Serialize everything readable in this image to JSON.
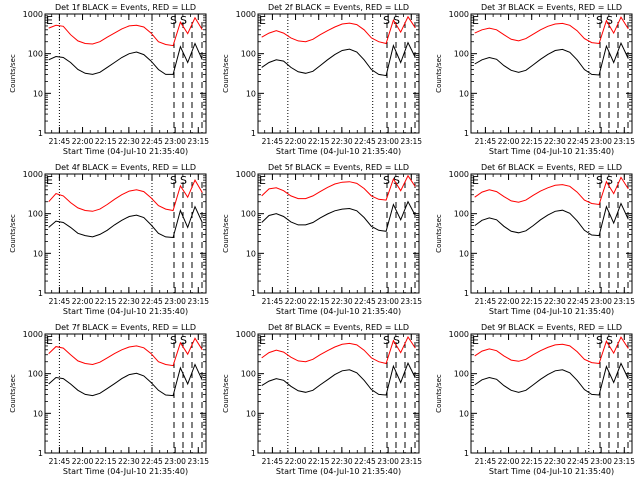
{
  "chart_data": [
    {
      "type": "line",
      "title": "Det 1f BLACK = Events, RED = LLD",
      "xlabel": "Start Time (04-Jul-10 21:35:40)",
      "ylabel": "Counts/sec",
      "yscale": "log",
      "ylim": [
        1,
        1000
      ],
      "yticks": [
        "1",
        "10",
        "100",
        "1000"
      ],
      "xticks": [
        "21:45",
        "22:00",
        "22:15",
        "22:30",
        "22:45",
        "23:00",
        "23:15"
      ],
      "marker_labels": [
        "E",
        "S",
        "S"
      ],
      "dotted_times": [
        "21:45",
        "22:45"
      ],
      "series": [
        {
          "color": "#ff0000",
          "start": "21:35:40",
          "values": [
            440,
            520,
            490,
            300,
            210,
            180,
            175,
            200,
            260,
            330,
            420,
            500,
            520,
            470,
            330,
            200,
            170,
            160,
            620,
            320,
            800,
            400
          ]
        },
        {
          "color": "#000000",
          "start": "21:35:40",
          "values": [
            70,
            85,
            80,
            60,
            40,
            32,
            30,
            34,
            45,
            60,
            80,
            100,
            110,
            95,
            65,
            40,
            30,
            30,
            150,
            60,
            180,
            70
          ]
        }
      ]
    },
    {
      "type": "line",
      "title": "Det 2f BLACK = Events, RED = LLD",
      "xlabel": "Start Time (04-Jul-10 21:35:40)",
      "ylabel": "Counts/sec",
      "yscale": "log",
      "ylim": [
        1,
        1000
      ],
      "yticks": [
        "1",
        "10",
        "100",
        "1000"
      ],
      "xticks": [
        "21:45",
        "22:00",
        "22:15",
        "22:30",
        "22:45",
        "23:00",
        "23:15"
      ],
      "marker_labels": [
        "E",
        "S",
        "S"
      ],
      "dotted_times": [
        "21:55",
        "22:50"
      ],
      "series": [
        {
          "color": "#ff0000",
          "start": "21:35:40",
          "values": [
            260,
            330,
            380,
            330,
            250,
            210,
            200,
            230,
            300,
            380,
            470,
            560,
            590,
            540,
            400,
            250,
            200,
            180,
            700,
            350,
            850,
            450
          ]
        },
        {
          "color": "#000000",
          "start": "21:35:40",
          "values": [
            45,
            60,
            70,
            65,
            45,
            35,
            32,
            36,
            50,
            70,
            95,
            120,
            130,
            110,
            70,
            40,
            30,
            28,
            160,
            60,
            190,
            80
          ]
        }
      ]
    },
    {
      "type": "line",
      "title": "Det 3f BLACK = Events, RED = LLD",
      "xlabel": "Start Time (04-Jul-10 21:35:40)",
      "ylabel": "Counts/sec",
      "yscale": "log",
      "ylim": [
        1,
        1000
      ],
      "yticks": [
        "1",
        "10",
        "100",
        "1000"
      ],
      "xticks": [
        "21:45",
        "22:00",
        "22:15",
        "22:30",
        "22:45",
        "23:00",
        "23:15"
      ],
      "marker_labels": [
        "E",
        "S",
        "S"
      ],
      "dotted_times": [
        "22:52"
      ],
      "series": [
        {
          "color": "#ff0000",
          "start": "21:35:40",
          "values": [
            330,
            400,
            440,
            400,
            300,
            230,
            210,
            240,
            310,
            400,
            490,
            560,
            580,
            520,
            380,
            240,
            190,
            180,
            680,
            330,
            830,
            420
          ]
        },
        {
          "color": "#000000",
          "start": "21:35:40",
          "values": [
            55,
            70,
            80,
            72,
            50,
            38,
            34,
            38,
            52,
            72,
            96,
            120,
            128,
            108,
            70,
            40,
            30,
            29,
            155,
            60,
            185,
            75
          ]
        }
      ]
    },
    {
      "type": "line",
      "title": "Det 4f BLACK = Events, RED = LLD",
      "xlabel": "Start Time (04-Jul-10 21:35:40)",
      "ylabel": "Counts/sec",
      "yscale": "log",
      "ylim": [
        1,
        1000
      ],
      "yticks": [
        "1",
        "10",
        "100",
        "1000"
      ],
      "xticks": [
        "21:45",
        "22:00",
        "22:15",
        "22:30",
        "22:45",
        "23:00",
        "23:15"
      ],
      "marker_labels": [
        "E",
        "S",
        "S"
      ],
      "dotted_times": [
        "21:45",
        "22:45"
      ],
      "series": [
        {
          "color": "#ff0000",
          "start": "21:35:40",
          "values": [
            200,
            320,
            280,
            190,
            140,
            120,
            115,
            130,
            170,
            230,
            300,
            370,
            400,
            360,
            250,
            160,
            130,
            120,
            500,
            260,
            700,
            340
          ]
        },
        {
          "color": "#000000",
          "start": "21:35:40",
          "values": [
            45,
            65,
            60,
            45,
            32,
            28,
            26,
            30,
            38,
            52,
            68,
            85,
            92,
            80,
            52,
            32,
            26,
            25,
            120,
            45,
            150,
            60
          ]
        }
      ]
    },
    {
      "type": "line",
      "title": "Det 5f BLACK = Events, RED = LLD",
      "xlabel": "Start Time (04-Jul-10 21:35:40)",
      "ylabel": "Counts/sec",
      "yscale": "log",
      "ylim": [
        1,
        1000
      ],
      "yticks": [
        "1",
        "10",
        "100",
        "1000"
      ],
      "xticks": [
        "21:45",
        "22:00",
        "22:15",
        "22:30",
        "22:45",
        "23:00",
        "23:15"
      ],
      "marker_labels": [
        "E",
        "S",
        "S"
      ],
      "dotted_times": [
        "21:55",
        "22:50"
      ],
      "series": [
        {
          "color": "#ff0000",
          "start": "21:35:40",
          "values": [
            280,
            420,
            450,
            380,
            280,
            240,
            240,
            280,
            360,
            460,
            560,
            620,
            640,
            580,
            430,
            280,
            230,
            220,
            750,
            380,
            900,
            480
          ]
        },
        {
          "color": "#000000",
          "start": "21:35:40",
          "values": [
            60,
            90,
            100,
            85,
            62,
            52,
            52,
            60,
            78,
            98,
            118,
            130,
            135,
            118,
            80,
            48,
            38,
            36,
            170,
            70,
            200,
            90
          ]
        }
      ]
    },
    {
      "type": "line",
      "title": "Det 6f BLACK = Events, RED = LLD",
      "xlabel": "Start Time (04-Jul-10 21:35:40)",
      "ylabel": "Counts/sec",
      "yscale": "log",
      "ylim": [
        1,
        1000
      ],
      "yticks": [
        "1",
        "10",
        "100",
        "1000"
      ],
      "xticks": [
        "21:45",
        "22:00",
        "22:15",
        "22:30",
        "22:45",
        "23:00",
        "23:15"
      ],
      "marker_labels": [
        "E",
        "S",
        "S"
      ],
      "dotted_times": [
        "22:52"
      ],
      "series": [
        {
          "color": "#ff0000",
          "start": "21:35:40",
          "values": [
            260,
            350,
            400,
            360,
            270,
            210,
            195,
            220,
            290,
            370,
            450,
            520,
            540,
            490,
            350,
            220,
            180,
            170,
            640,
            320,
            820,
            420
          ]
        },
        {
          "color": "#000000",
          "start": "21:35:40",
          "values": [
            50,
            68,
            78,
            70,
            48,
            36,
            33,
            37,
            50,
            70,
            92,
            115,
            122,
            102,
            66,
            38,
            29,
            28,
            150,
            58,
            180,
            72
          ]
        }
      ]
    },
    {
      "type": "line",
      "title": "Det 7f BLACK = Events, RED = LLD",
      "xlabel": "Start Time (04-Jul-10 21:35:40)",
      "ylabel": "Counts/sec",
      "yscale": "log",
      "ylim": [
        1,
        1000
      ],
      "yticks": [
        "1",
        "10",
        "100",
        "1000"
      ],
      "xticks": [
        "21:45",
        "22:00",
        "22:15",
        "22:30",
        "22:45",
        "23:00",
        "23:15"
      ],
      "marker_labels": [
        "E",
        "S",
        "S"
      ],
      "dotted_times": [
        "21:45",
        "22:45"
      ],
      "series": [
        {
          "color": "#ff0000",
          "start": "21:35:40",
          "values": [
            320,
            480,
            440,
            300,
            210,
            180,
            170,
            195,
            250,
            320,
            400,
            470,
            500,
            450,
            320,
            200,
            170,
            160,
            600,
            310,
            780,
            400
          ]
        },
        {
          "color": "#000000",
          "start": "21:35:40",
          "values": [
            55,
            80,
            75,
            55,
            38,
            30,
            28,
            32,
            42,
            56,
            75,
            95,
            102,
            88,
            60,
            38,
            29,
            28,
            140,
            55,
            170,
            68
          ]
        }
      ]
    },
    {
      "type": "line",
      "title": "Det 8f BLACK = Events, RED = LLD",
      "xlabel": "Start Time (04-Jul-10 21:35:40)",
      "ylabel": "Counts/sec",
      "yscale": "log",
      "ylim": [
        1,
        1000
      ],
      "yticks": [
        "1",
        "10",
        "100",
        "1000"
      ],
      "xticks": [
        "21:45",
        "22:00",
        "22:15",
        "22:30",
        "22:45",
        "23:00",
        "23:15"
      ],
      "marker_labels": [
        "E",
        "S",
        "S"
      ],
      "dotted_times": [
        "21:55",
        "22:50"
      ],
      "series": [
        {
          "color": "#ff0000",
          "start": "21:35:40",
          "values": [
            250,
            340,
            390,
            350,
            260,
            210,
            200,
            230,
            300,
            380,
            470,
            550,
            580,
            530,
            390,
            250,
            200,
            180,
            680,
            340,
            840,
            440
          ]
        },
        {
          "color": "#000000",
          "start": "21:35:40",
          "values": [
            50,
            65,
            75,
            68,
            48,
            37,
            34,
            38,
            52,
            70,
            95,
            118,
            125,
            105,
            68,
            40,
            30,
            29,
            155,
            60,
            185,
            78
          ]
        }
      ]
    },
    {
      "type": "line",
      "title": "Det 9f BLACK = Events, RED = LLD",
      "xlabel": "Start Time (04-Jul-10 21:35:40)",
      "ylabel": "Counts/sec",
      "yscale": "log",
      "ylim": [
        1,
        1000
      ],
      "yticks": [
        "1",
        "10",
        "100",
        "1000"
      ],
      "xticks": [
        "21:45",
        "22:00",
        "22:15",
        "22:30",
        "22:45",
        "23:00",
        "23:15"
      ],
      "marker_labels": [
        "E",
        "S",
        "S"
      ],
      "dotted_times": [
        "22:52"
      ],
      "series": [
        {
          "color": "#ff0000",
          "start": "21:35:40",
          "values": [
            280,
            370,
            420,
            380,
            280,
            220,
            205,
            230,
            300,
            380,
            460,
            530,
            550,
            500,
            360,
            230,
            190,
            180,
            660,
            330,
            830,
            430
          ]
        },
        {
          "color": "#000000",
          "start": "21:35:40",
          "values": [
            52,
            70,
            80,
            72,
            50,
            38,
            34,
            38,
            52,
            72,
            95,
            118,
            125,
            105,
            68,
            40,
            30,
            29,
            152,
            60,
            182,
            74
          ]
        }
      ]
    }
  ]
}
